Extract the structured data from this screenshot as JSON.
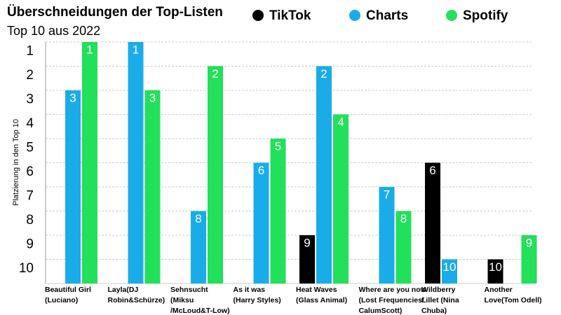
{
  "chart_data": {
    "type": "bar",
    "title": "Überschneidungen der Top-Listen",
    "subtitle": "Top 10 aus 2022",
    "y_label": "Platzierung in den Top 10",
    "categories": [
      "Beautiful Girl\n(Luciano)",
      "Layla(DJ\nRobin&Schürze)",
      "Sehnsucht\n(Miksu\n/McLoud&T-Low)",
      "As it was\n(Harry Styles)",
      "Heat Waves\n(Glass Animal)",
      "Where are you now\n(Lost Frequencies/\nCalumScott)",
      "Wildberry\nLillet (Nina\nChuba)",
      "Another\nLove(Tom Odell)"
    ],
    "series": [
      {
        "name": "TikTok",
        "color": "#000000",
        "values": [
          null,
          null,
          null,
          null,
          9,
          null,
          6,
          10
        ]
      },
      {
        "name": "Charts",
        "color": "#1aace8",
        "values": [
          3,
          1,
          8,
          6,
          2,
          7,
          10,
          null
        ]
      },
      {
        "name": "Spotify",
        "color": "#22e05a",
        "values": [
          1,
          3,
          2,
          5,
          4,
          8,
          null,
          9
        ]
      }
    ],
    "ylim": [
      11,
      1
    ],
    "yticks": [
      1,
      2,
      3,
      4,
      5,
      6,
      7,
      8,
      9,
      10
    ],
    "grid": true,
    "data_labels": true
  }
}
